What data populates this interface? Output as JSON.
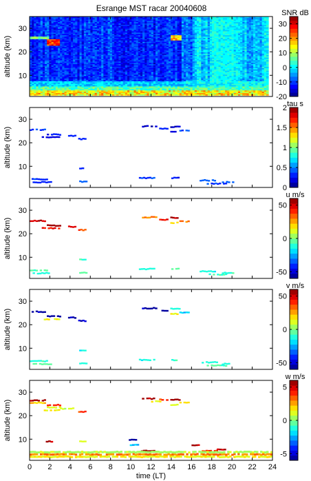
{
  "title": "Esrange MST racar 20040608",
  "chart_data": [
    {
      "type": "heatmap",
      "panel": "SNR",
      "ylabel": "altitude (km)",
      "ylim": [
        1,
        35
      ],
      "yticks": [
        10,
        20,
        30
      ],
      "xlim": [
        0,
        24
      ],
      "colorbar": {
        "label": "SNR dB",
        "range": [
          -20,
          35
        ],
        "ticks": [
          -20,
          -10,
          0,
          10,
          20,
          30
        ]
      },
      "summary": "SNR mostly -15 to -5 dB above 8 km; strong echoes (>20 dB) near 23-25 km at 2-3 LT; enhanced SNR (5-25 dB) below 5 km all day; columns 16-23 LT brighter (~0 dB)"
    },
    {
      "type": "heatmap",
      "panel": "tau",
      "ylabel": "altitude (km)",
      "ylim": [
        1,
        35
      ],
      "yticks": [
        10,
        20,
        30
      ],
      "xlim": [
        0,
        24
      ],
      "colorbar": {
        "label": "tau s",
        "range": [
          0,
          2
        ],
        "ticks": [
          0,
          0.5,
          1,
          1.5,
          2
        ]
      },
      "segments": [
        {
          "t": [
            0,
            1.6
          ],
          "alt": 25.5,
          "v": 0.35
        },
        {
          "t": [
            1.7,
            3.1
          ],
          "alt": 23.5,
          "v": 0.3
        },
        {
          "t": [
            1.2,
            3.0
          ],
          "alt": 22.3,
          "v": 0.2
        },
        {
          "t": [
            3.8,
            4.6
          ],
          "alt": 23.0,
          "v": 0.25
        },
        {
          "t": [
            4.8,
            5.6
          ],
          "alt": 21.6,
          "v": 0.3
        },
        {
          "t": [
            11.1,
            12.6
          ],
          "alt": 27.0,
          "v": 0.15
        },
        {
          "t": [
            12.8,
            13.7
          ],
          "alt": 26.0,
          "v": 0.3
        },
        {
          "t": [
            13.9,
            14.9
          ],
          "alt": 26.8,
          "v": 0.15
        },
        {
          "t": [
            13.9,
            14.7
          ],
          "alt": 24.6,
          "v": 0.2
        },
        {
          "t": [
            14.8,
            15.8
          ],
          "alt": 25.2,
          "v": 0.4
        },
        {
          "t": [
            0,
            1.8
          ],
          "alt": 4.5,
          "v": 0.35
        },
        {
          "t": [
            0.3,
            2.2
          ],
          "alt": 3.2,
          "v": 0.3
        },
        {
          "t": [
            4.9,
            5.6
          ],
          "alt": 9.0,
          "v": 0.35
        },
        {
          "t": [
            4.9,
            5.7
          ],
          "alt": 3.5,
          "v": 0.4
        },
        {
          "t": [
            10.8,
            12.4
          ],
          "alt": 5.0,
          "v": 0.35
        },
        {
          "t": [
            14.0,
            14.8
          ],
          "alt": 5.0,
          "v": 0.3
        },
        {
          "t": [
            16.8,
            18.6
          ],
          "alt": 4.0,
          "v": 0.4
        },
        {
          "t": [
            17.5,
            19.5
          ],
          "alt": 2.6,
          "v": 0.35
        },
        {
          "t": [
            19.0,
            20.2
          ],
          "alt": 3.3,
          "v": 0.45
        }
      ]
    },
    {
      "type": "heatmap",
      "panel": "u",
      "ylabel": "altitude (km)",
      "ylim": [
        1,
        35
      ],
      "yticks": [
        10,
        20,
        30
      ],
      "xlim": [
        0,
        24
      ],
      "colorbar": {
        "label": "u m/s",
        "range": [
          -60,
          60
        ],
        "ticks": [
          -50,
          0,
          50
        ]
      },
      "segments": [
        {
          "t": [
            0,
            1.6
          ],
          "alt": 25.5,
          "v": 52
        },
        {
          "t": [
            1.7,
            3.1
          ],
          "alt": 23.5,
          "v": 55
        },
        {
          "t": [
            1.2,
            3.0
          ],
          "alt": 22.3,
          "v": 45
        },
        {
          "t": [
            3.8,
            4.6
          ],
          "alt": 23.0,
          "v": 50
        },
        {
          "t": [
            4.8,
            5.6
          ],
          "alt": 21.6,
          "v": 35
        },
        {
          "t": [
            11.1,
            12.6
          ],
          "alt": 27.0,
          "v": 30
        },
        {
          "t": [
            12.8,
            13.7
          ],
          "alt": 26.0,
          "v": 45
        },
        {
          "t": [
            13.9,
            14.9
          ],
          "alt": 26.8,
          "v": 55
        },
        {
          "t": [
            13.9,
            14.7
          ],
          "alt": 24.6,
          "v": 20
        },
        {
          "t": [
            14.8,
            15.8
          ],
          "alt": 25.2,
          "v": 30
        },
        {
          "t": [
            0,
            1.8
          ],
          "alt": 4.5,
          "v": -5
        },
        {
          "t": [
            0.3,
            2.2
          ],
          "alt": 3.2,
          "v": -10
        },
        {
          "t": [
            4.9,
            5.6
          ],
          "alt": 9.0,
          "v": -8
        },
        {
          "t": [
            4.9,
            5.7
          ],
          "alt": 3.5,
          "v": -5
        },
        {
          "t": [
            10.8,
            12.4
          ],
          "alt": 5.0,
          "v": -10
        },
        {
          "t": [
            14.0,
            14.8
          ],
          "alt": 5.0,
          "v": -5
        },
        {
          "t": [
            16.8,
            18.6
          ],
          "alt": 4.0,
          "v": -12
        },
        {
          "t": [
            17.5,
            19.5
          ],
          "alt": 2.6,
          "v": -8
        },
        {
          "t": [
            19.0,
            20.2
          ],
          "alt": 3.3,
          "v": -10
        }
      ]
    },
    {
      "type": "heatmap",
      "panel": "v",
      "ylabel": "altitude (km)",
      "ylim": [
        1,
        35
      ],
      "yticks": [
        10,
        20,
        30
      ],
      "xlim": [
        0,
        24
      ],
      "colorbar": {
        "label": "v m/s",
        "range": [
          -60,
          60
        ],
        "ticks": [
          -50,
          0,
          50
        ]
      },
      "segments": [
        {
          "t": [
            0,
            1.6
          ],
          "alt": 25.5,
          "v": -55
        },
        {
          "t": [
            1.7,
            3.1
          ],
          "alt": 23.5,
          "v": -60
        },
        {
          "t": [
            1.2,
            3.0
          ],
          "alt": 22.3,
          "v": 15
        },
        {
          "t": [
            3.8,
            4.6
          ],
          "alt": 23.0,
          "v": -55
        },
        {
          "t": [
            4.8,
            5.6
          ],
          "alt": 21.6,
          "v": -50
        },
        {
          "t": [
            11.1,
            12.6
          ],
          "alt": 27.0,
          "v": -55
        },
        {
          "t": [
            12.8,
            13.7
          ],
          "alt": 26.0,
          "v": -60
        },
        {
          "t": [
            13.9,
            14.9
          ],
          "alt": 26.8,
          "v": -10
        },
        {
          "t": [
            13.9,
            14.7
          ],
          "alt": 24.6,
          "v": 15
        },
        {
          "t": [
            14.8,
            15.8
          ],
          "alt": 25.2,
          "v": -20
        },
        {
          "t": [
            0,
            1.8
          ],
          "alt": 4.5,
          "v": -10
        },
        {
          "t": [
            0.3,
            2.2
          ],
          "alt": 3.2,
          "v": -5
        },
        {
          "t": [
            4.9,
            5.6
          ],
          "alt": 9.0,
          "v": -15
        },
        {
          "t": [
            4.9,
            5.7
          ],
          "alt": 3.5,
          "v": -10
        },
        {
          "t": [
            10.8,
            12.4
          ],
          "alt": 5.0,
          "v": -12
        },
        {
          "t": [
            14.0,
            14.8
          ],
          "alt": 5.0,
          "v": -8
        },
        {
          "t": [
            16.8,
            18.6
          ],
          "alt": 4.0,
          "v": -10
        },
        {
          "t": [
            17.5,
            19.5
          ],
          "alt": 2.6,
          "v": -5
        },
        {
          "t": [
            19.0,
            20.2
          ],
          "alt": 3.3,
          "v": -12
        }
      ]
    },
    {
      "type": "heatmap",
      "panel": "w",
      "ylabel": "altitude (km)",
      "ylim": [
        1,
        35
      ],
      "yticks": [
        10,
        20,
        30
      ],
      "xlim": [
        0,
        24
      ],
      "xlabel": "time (LT)",
      "xticks": [
        0,
        2,
        4,
        6,
        8,
        10,
        12,
        14,
        16,
        18,
        20,
        22,
        24
      ],
      "colorbar": {
        "label": "w m/s",
        "range": [
          -6,
          6
        ],
        "ticks": [
          -5,
          0,
          5
        ]
      },
      "segments": [
        {
          "t": [
            0,
            1.6
          ],
          "alt": 26.5,
          "v": 5.5
        },
        {
          "t": [
            0,
            1.6
          ],
          "alt": 25.5,
          "v": 2
        },
        {
          "t": [
            1.7,
            3.1
          ],
          "alt": 24.5,
          "v": 4
        },
        {
          "t": [
            1.7,
            3.1
          ],
          "alt": 23.5,
          "v": 1
        },
        {
          "t": [
            1.2,
            3.0
          ],
          "alt": 22.3,
          "v": 1.5
        },
        {
          "t": [
            3.0,
            4.6
          ],
          "alt": 23.0,
          "v": 1
        },
        {
          "t": [
            4.8,
            5.6
          ],
          "alt": 21.6,
          "v": 4
        },
        {
          "t": [
            11.1,
            12.6
          ],
          "alt": 27.2,
          "v": 5.5
        },
        {
          "t": [
            12.0,
            13.0
          ],
          "alt": 26.0,
          "v": 1.5
        },
        {
          "t": [
            12.8,
            13.7
          ],
          "alt": 26.8,
          "v": 4
        },
        {
          "t": [
            13.9,
            14.9
          ],
          "alt": 26.8,
          "v": 5.8
        },
        {
          "t": [
            13.9,
            14.7
          ],
          "alt": 24.6,
          "v": 1
        },
        {
          "t": [
            14.8,
            15.8
          ],
          "alt": 25.5,
          "v": 2
        },
        {
          "t": [
            1.6,
            2.3
          ],
          "alt": 9.0,
          "v": 5.5
        },
        {
          "t": [
            4.9,
            5.6
          ],
          "alt": 9.0,
          "v": 1
        },
        {
          "t": [
            9.8,
            10.6
          ],
          "alt": 9.8,
          "v": -5.5
        },
        {
          "t": [
            9.9,
            10.8
          ],
          "alt": 7.5,
          "v": -2
        },
        {
          "t": [
            10.8,
            12.4
          ],
          "alt": 5.0,
          "v": 5.8
        },
        {
          "t": [
            16.0,
            16.8
          ],
          "alt": 7.5,
          "v": 5.5
        },
        {
          "t": [
            16.8,
            18.6
          ],
          "alt": 5.0,
          "v": 4
        },
        {
          "t": [
            18.5,
            19.4
          ],
          "alt": 5.5,
          "v": 5
        },
        {
          "t": [
            0,
            24
          ],
          "alt": 2.5,
          "v": 1.5
        },
        {
          "t": [
            0,
            24
          ],
          "alt": 3.5,
          "v": 3
        },
        {
          "t": [
            0,
            24
          ],
          "alt": 4.5,
          "v": 0.5
        }
      ]
    }
  ]
}
